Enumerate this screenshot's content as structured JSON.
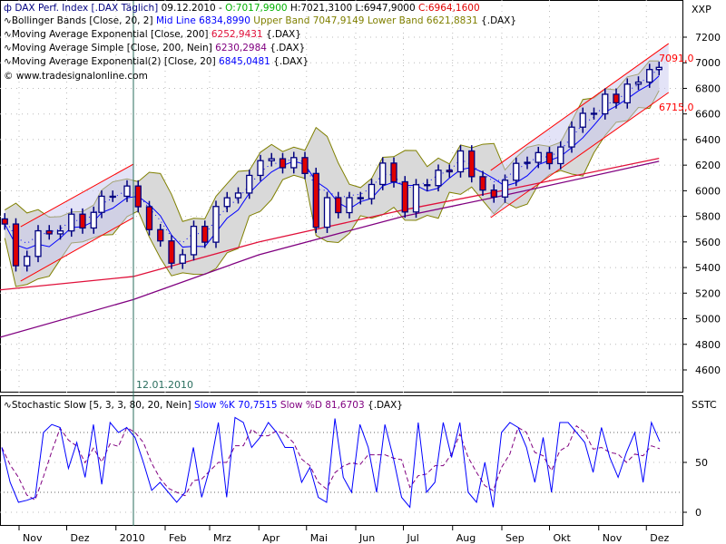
{
  "header": {
    "symbol": "DAX Perf. Index [.DAX  Täglich]",
    "date": "09.12.2010 -",
    "open": "O:7017,9900",
    "high": "H:7021,3100",
    "low": "L:6947,9000",
    "close": "C:6964,1600"
  },
  "legends": {
    "bb": {
      "name": "Bollinger Bands [Close, 20, 2]",
      "mid": "Mid Line 6834,8990",
      "upper": "Upper Band 7047,9149",
      "lower": "Lower Band 6621,8831",
      "suffix": "{.DAX}"
    },
    "ema200": {
      "name": "Moving Average Exponential [Close, 200]",
      "value": "6252,9431",
      "suffix": "{.DAX}"
    },
    "sma200": {
      "name": "Moving Average Simple [Close, 200, Nein]",
      "value": "6230,2984",
      "suffix": "{.DAX}"
    },
    "ema20": {
      "name": "Moving Average Exponential(2) [Close, 20]",
      "value": "6845,0481",
      "suffix": "{.DAX}"
    },
    "copyright": "© www.tradesignalonline.com",
    "stoch": {
      "name": "Stochastic Slow [5, 3, 3, 80, 20, Nein]",
      "k": "Slow %K 70,7515",
      "d": "Slow %D 81,6703",
      "suffix": "{.DAX}"
    }
  },
  "colors": {
    "up": "#ffffff",
    "down": "#e00000",
    "outline": "#000080",
    "band_fill": "#d9d9d9",
    "band_line": "#808000",
    "mid": "#0000ff",
    "ema200": "#e0103a",
    "sma200": "#800080",
    "channel": "#ff0000",
    "channel_fill": "#c8c8f0",
    "k": "#0000ff",
    "d": "#800080"
  },
  "chart_data": [
    {
      "type": "candlestick",
      "ylabel": "XXP",
      "ylim": [
        4450,
        7350
      ],
      "yticks": [
        4600,
        4800,
        5000,
        5200,
        5400,
        5600,
        5800,
        6000,
        6200,
        6400,
        6600,
        6800,
        7000,
        7200
      ],
      "grid": true,
      "weekly_closes": [
        [
          "2009-10-23",
          5740
        ],
        [
          "2009-10-30",
          5414
        ],
        [
          "2009-11-06",
          5487
        ],
        [
          "2009-11-13",
          5687
        ],
        [
          "2009-11-20",
          5663
        ],
        [
          "2009-11-27",
          5686
        ],
        [
          "2009-12-04",
          5817
        ],
        [
          "2009-12-11",
          5709
        ],
        [
          "2009-12-18",
          5831
        ],
        [
          "2009-12-23",
          5957
        ],
        [
          "2009-12-30",
          5957
        ],
        [
          "2010-01-08",
          6037
        ],
        [
          "2010-01-15",
          5875
        ],
        [
          "2010-01-22",
          5696
        ],
        [
          "2010-01-29",
          5608
        ],
        [
          "2010-02-05",
          5434
        ],
        [
          "2010-02-12",
          5500
        ],
        [
          "2010-02-19",
          5722
        ],
        [
          "2010-02-26",
          5598
        ],
        [
          "2010-03-05",
          5877
        ],
        [
          "2010-03-12",
          5945
        ],
        [
          "2010-03-19",
          5982
        ],
        [
          "2010-03-26",
          6120
        ],
        [
          "2010-04-02",
          6235
        ],
        [
          "2010-04-09",
          6250
        ],
        [
          "2010-04-16",
          6180
        ],
        [
          "2010-04-23",
          6259
        ],
        [
          "2010-04-30",
          6135
        ],
        [
          "2010-05-07",
          5715
        ],
        [
          "2010-05-14",
          5946
        ],
        [
          "2010-05-21",
          5829
        ],
        [
          "2010-05-28",
          5946
        ],
        [
          "2010-06-04",
          5938
        ],
        [
          "2010-06-11",
          6049
        ],
        [
          "2010-06-18",
          6216
        ],
        [
          "2010-06-25",
          6070
        ],
        [
          "2010-07-02",
          5834
        ],
        [
          "2010-07-09",
          6047
        ],
        [
          "2010-07-16",
          6040
        ],
        [
          "2010-07-23",
          6160
        ],
        [
          "2010-07-30",
          6148
        ],
        [
          "2010-08-06",
          6311
        ],
        [
          "2010-08-13",
          6110
        ],
        [
          "2010-08-20",
          6005
        ],
        [
          "2010-08-27",
          5951
        ],
        [
          "2010-09-03",
          6082
        ],
        [
          "2010-09-10",
          6214
        ],
        [
          "2010-09-17",
          6222
        ],
        [
          "2010-09-24",
          6298
        ],
        [
          "2010-10-01",
          6212
        ],
        [
          "2010-10-08",
          6342
        ],
        [
          "2010-10-15",
          6497
        ],
        [
          "2010-10-22",
          6605
        ],
        [
          "2010-10-29",
          6601
        ],
        [
          "2010-11-05",
          6754
        ],
        [
          "2010-11-12",
          6687
        ],
        [
          "2010-11-19",
          6833
        ],
        [
          "2010-11-26",
          6849
        ],
        [
          "2010-12-03",
          6947
        ],
        [
          "2010-12-09",
          6964
        ]
      ],
      "ema200": [
        [
          "2009-10-20",
          5225
        ],
        [
          "2010-01-12",
          5330
        ],
        [
          "2010-04-01",
          5600
        ],
        [
          "2010-07-01",
          5850
        ],
        [
          "2010-09-01",
          6000
        ],
        [
          "2010-12-09",
          6253
        ]
      ],
      "sma200": [
        [
          "2009-10-20",
          4855
        ],
        [
          "2010-01-12",
          5150
        ],
        [
          "2010-04-01",
          5500
        ],
        [
          "2010-07-01",
          5800
        ],
        [
          "2010-09-01",
          5960
        ],
        [
          "2010-12-09",
          6230
        ]
      ],
      "channels": [
        {
          "start": "2009-11-02",
          "end": "2010-01-12",
          "upper": [
            5719,
            6208
          ],
          "lower": [
            5294,
            5790
          ]
        },
        {
          "start": "2010-08-25",
          "end": "2010-12-15",
          "upper": [
            6159,
            7150
          ],
          "lower": [
            5790,
            6768
          ],
          "upper_label": "7091,0",
          "lower_label": "6715,0"
        }
      ],
      "marker": {
        "date": "2010-01-12",
        "label": "12.01.2010"
      }
    },
    {
      "type": "line",
      "ylabel": "SSTC",
      "ylim": [
        -12,
        108
      ],
      "yticks": [
        0,
        50
      ],
      "levels": [
        20,
        80
      ],
      "slow_k": [
        65,
        30,
        10,
        12,
        15,
        80,
        88,
        85,
        44,
        70,
        35,
        88,
        28,
        90,
        80,
        85,
        75,
        50,
        22,
        30,
        20,
        10,
        20,
        65,
        15,
        45,
        90,
        15,
        95,
        90,
        65,
        75,
        90,
        80,
        65,
        65,
        30,
        45,
        15,
        10,
        94,
        35,
        20,
        88,
        65,
        20,
        88,
        55,
        15,
        5,
        90,
        20,
        30,
        90,
        55,
        90,
        20,
        10,
        50,
        5,
        80,
        90,
        85,
        65,
        30,
        75,
        20,
        90,
        90,
        80,
        70,
        40,
        85,
        55,
        35,
        60,
        80,
        30,
        90,
        71
      ]
    }
  ],
  "xaxis": {
    "labels": [
      [
        "2009-11-01",
        "Nov"
      ],
      [
        "2009-12-01",
        "Dez"
      ],
      [
        "2010-01-01",
        "2010"
      ],
      [
        "2010-02-01",
        "Feb"
      ],
      [
        "2010-03-01",
        "Mrz"
      ],
      [
        "2010-04-01",
        "Apr"
      ],
      [
        "2010-05-01",
        "Mai"
      ],
      [
        "2010-06-01",
        "Jun"
      ],
      [
        "2010-07-01",
        "Jul"
      ],
      [
        "2010-08-01",
        "Aug"
      ],
      [
        "2010-09-01",
        "Sep"
      ],
      [
        "2010-10-01",
        "Okt"
      ],
      [
        "2010-11-01",
        "Nov"
      ],
      [
        "2010-12-01",
        "Dez"
      ]
    ]
  }
}
